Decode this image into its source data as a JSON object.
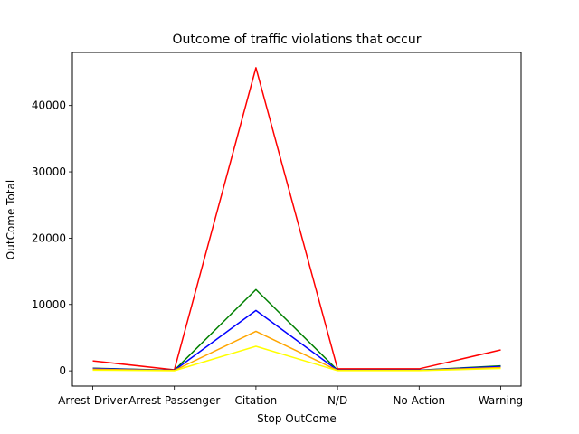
{
  "chart_data": {
    "type": "line",
    "title": "Outcome of traffic violations that occur",
    "xlabel": "Stop OutCome",
    "ylabel": "OutCome Total",
    "categories": [
      "Arrest Driver",
      "Arrest Passenger",
      "Citation",
      "N/D",
      "No Action",
      "Warning"
    ],
    "yticks": [
      0,
      10000,
      20000,
      30000,
      40000
    ],
    "ylim": [
      -2300,
      48000
    ],
    "grid": false,
    "legend": "none",
    "series": [
      {
        "color": "#ff0000",
        "values": [
          1500,
          150,
          45700,
          300,
          300,
          3150
        ]
      },
      {
        "color": "#008000",
        "values": [
          400,
          80,
          12250,
          100,
          100,
          750
        ]
      },
      {
        "color": "#0000ff",
        "values": [
          350,
          70,
          9100,
          90,
          90,
          650
        ]
      },
      {
        "color": "#ffa500",
        "values": [
          250,
          50,
          5950,
          60,
          60,
          500
        ]
      },
      {
        "color": "#ffff00",
        "values": [
          100,
          20,
          3700,
          30,
          30,
          350
        ]
      }
    ]
  }
}
